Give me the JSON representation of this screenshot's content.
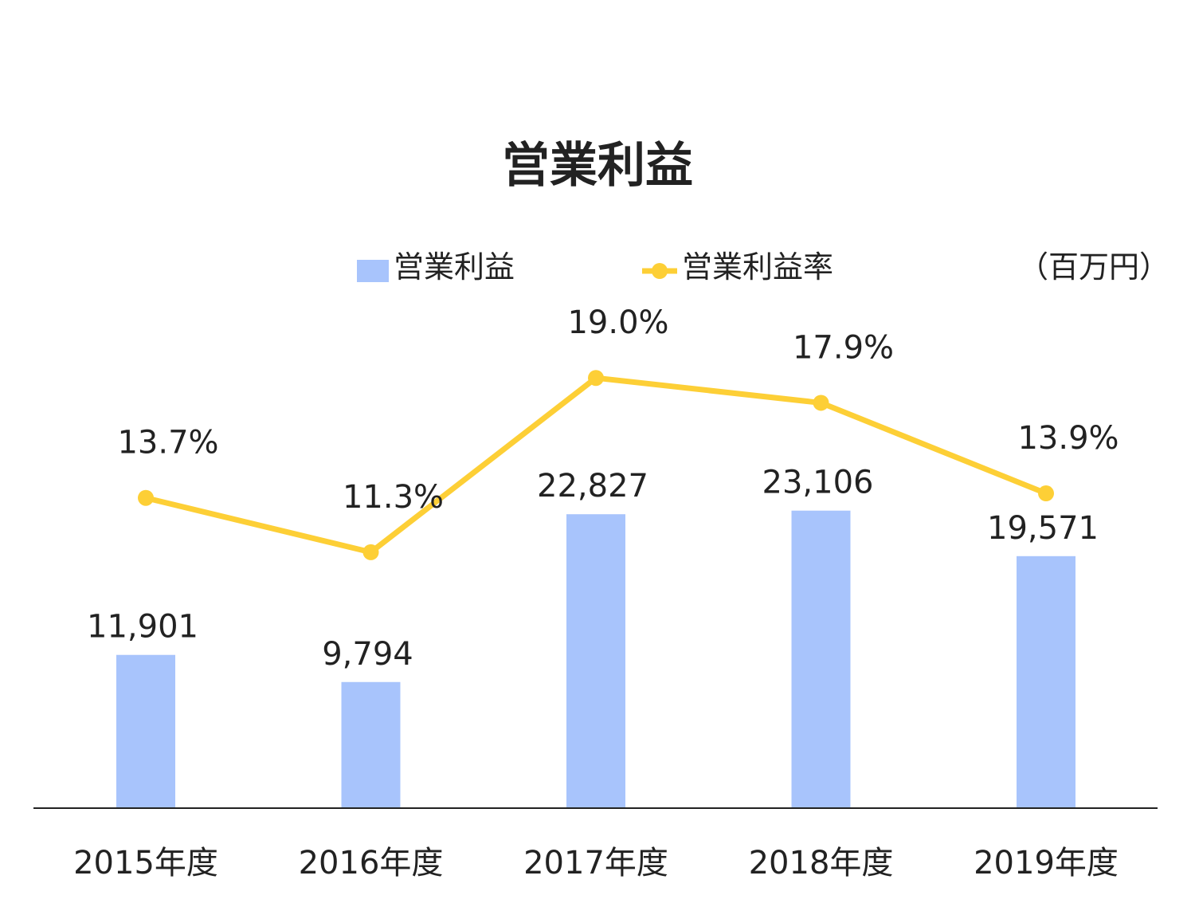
{
  "chart_data": {
    "type": "bar",
    "title": "営業利益",
    "unit_label": "（百万円）",
    "categories": [
      "2015年度",
      "2016年度",
      "2017年度",
      "2018年度",
      "2019年度"
    ],
    "series": [
      {
        "name": "営業利益",
        "type": "bar",
        "color": "#a8c4fc",
        "values": [
          11901,
          9794,
          22827,
          23106,
          19571
        ],
        "labels": [
          "11,901",
          "9,794",
          "22,827",
          "23,106",
          "19,571"
        ]
      },
      {
        "name": "営業利益率",
        "type": "line",
        "color": "#fdcf36",
        "values": [
          13.7,
          11.3,
          19.0,
          17.9,
          13.9
        ],
        "labels": [
          "13.7%",
          "11.3%",
          "19.0%",
          "17.9%",
          "13.9%"
        ]
      }
    ],
    "legend_position": "top",
    "grid": false
  }
}
